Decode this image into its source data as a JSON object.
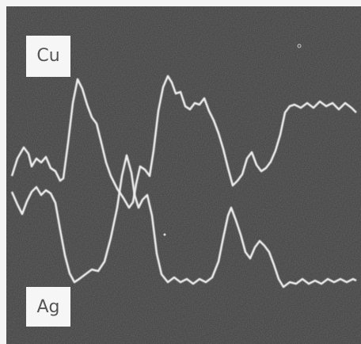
{
  "labels": {
    "top": "Cu",
    "bottom": "Ag"
  }
}
